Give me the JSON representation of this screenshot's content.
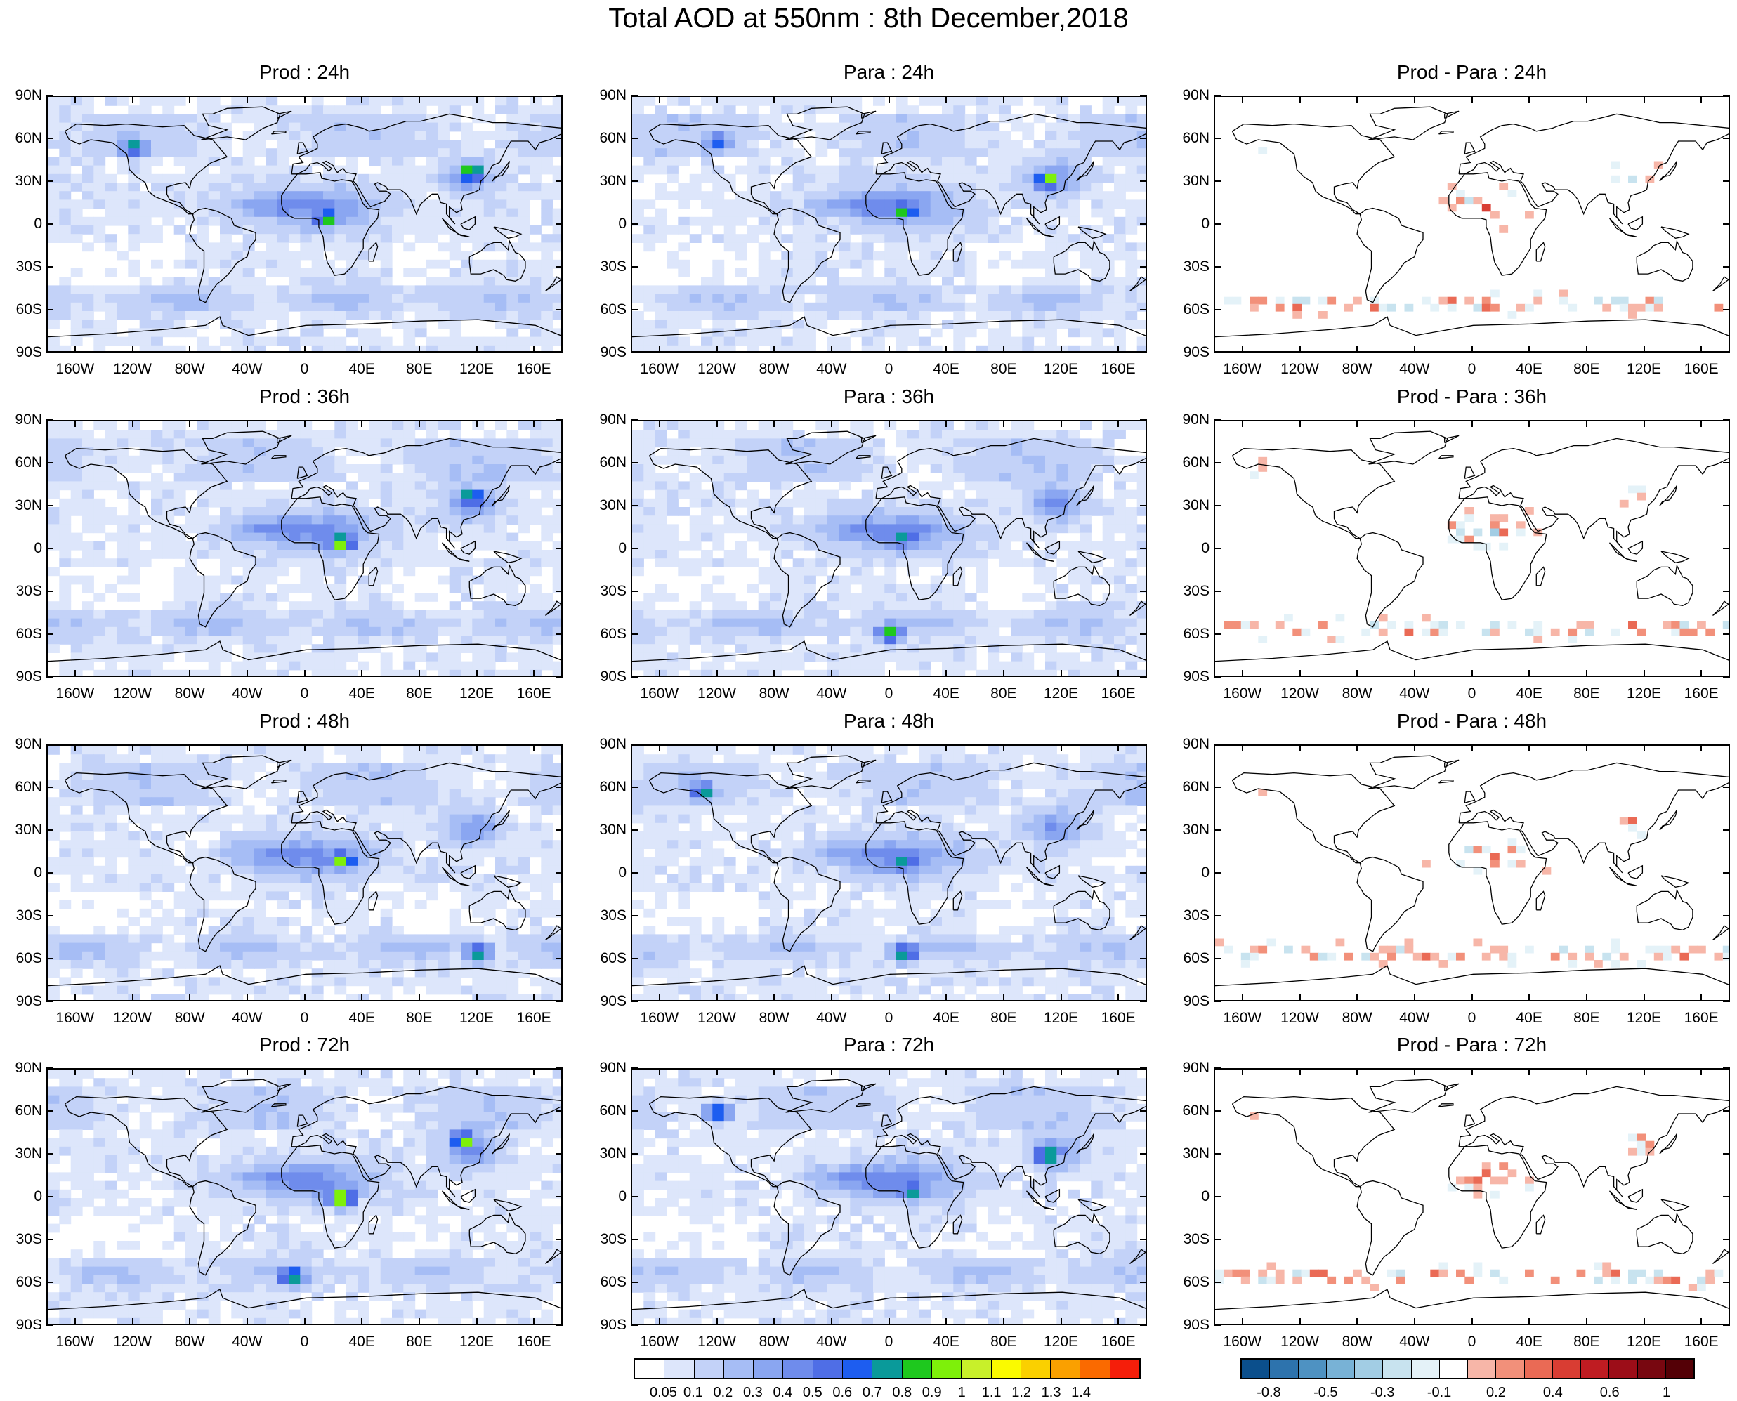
{
  "title": "Total AOD at 550nm : 8th December,2018",
  "lat_labels": [
    "90N",
    "60N",
    "30N",
    "0",
    "30S",
    "60S",
    "90S"
  ],
  "lon_labels": [
    "160W",
    "120W",
    "80W",
    "40W",
    "0",
    "40E",
    "80E",
    "120E",
    "160E"
  ],
  "panels": [
    {
      "title": "Prod : 24h",
      "kind": "aod",
      "hotspots": [
        {
          "lon": 15,
          "lat": 5,
          "v": 0.9
        },
        {
          "lon": 115,
          "lat": 37,
          "v": 1.0
        },
        {
          "lon": -120,
          "lat": 55,
          "v": 0.8
        }
      ]
    },
    {
      "title": "Para : 24h",
      "kind": "aod",
      "hotspots": [
        {
          "lon": 10,
          "lat": 10,
          "v": 0.9
        },
        {
          "lon": 110,
          "lat": 32,
          "v": 1.0
        },
        {
          "lon": -120,
          "lat": 58,
          "v": 0.7
        }
      ]
    },
    {
      "title": "Prod - Para : 24h",
      "kind": "diff",
      "seed": 3
    },
    {
      "title": "Prod : 36h",
      "kind": "aod",
      "hotspots": [
        {
          "lon": 25,
          "lat": 5,
          "v": 1.0
        },
        {
          "lon": 115,
          "lat": 37,
          "v": 0.9
        }
      ]
    },
    {
      "title": "Para : 36h",
      "kind": "aod",
      "hotspots": [
        {
          "lon": 10,
          "lat": 8,
          "v": 0.8
        },
        {
          "lon": 0,
          "lat": -58,
          "v": 0.9
        }
      ]
    },
    {
      "title": "Prod - Para : 36h",
      "kind": "diff",
      "seed": 7
    },
    {
      "title": "Prod : 48h",
      "kind": "aod",
      "hotspots": [
        {
          "lon": 25,
          "lat": 10,
          "v": 1.0
        },
        {
          "lon": 120,
          "lat": -55,
          "v": 0.8
        }
      ]
    },
    {
      "title": "Para : 48h",
      "kind": "aod",
      "hotspots": [
        {
          "lon": 10,
          "lat": 8,
          "v": 0.8
        },
        {
          "lon": -130,
          "lat": 58,
          "v": 0.8
        },
        {
          "lon": 10,
          "lat": -55,
          "v": 0.8
        }
      ]
    },
    {
      "title": "Prod - Para : 48h",
      "kind": "diff",
      "seed": 11
    },
    {
      "title": "Prod : 72h",
      "kind": "aod",
      "hotspots": [
        {
          "lon": 25,
          "lat": 0,
          "v": 1.1
        },
        {
          "lon": 110,
          "lat": 40,
          "v": 1.0
        },
        {
          "lon": -10,
          "lat": -55,
          "v": 0.9
        }
      ]
    },
    {
      "title": "Para : 72h",
      "kind": "aod",
      "hotspots": [
        {
          "lon": 15,
          "lat": 5,
          "v": 0.8
        },
        {
          "lon": -120,
          "lat": 60,
          "v": 0.8
        },
        {
          "lon": 110,
          "lat": 30,
          "v": 0.9
        }
      ]
    },
    {
      "title": "Prod - Para : 72h",
      "kind": "diff",
      "seed": 19
    }
  ],
  "colorbar_aod": {
    "labels": [
      "0.05",
      "0.1",
      "0.2",
      "0.3",
      "0.4",
      "0.5",
      "0.6",
      "0.7",
      "0.8",
      "0.9",
      "1",
      "1.1",
      "1.2",
      "1.3",
      "1.4"
    ],
    "colors": [
      "#ffffff",
      "#dde6fb",
      "#c3d2f8",
      "#a6bdf5",
      "#8aa6f1",
      "#6f8cec",
      "#4f6ee6",
      "#1d5df0",
      "#0a9a9a",
      "#1ec81e",
      "#7ef00a",
      "#c8f02a",
      "#fafa00",
      "#fad000",
      "#faa000",
      "#fa6a00",
      "#f51e0a"
    ]
  },
  "colorbar_diff": {
    "labels": [
      "-0.8",
      "-0.5",
      "-0.3",
      "-0.1",
      "0.2",
      "0.4",
      "0.6",
      "1"
    ],
    "colors": [
      "#0b4f8c",
      "#2d73ad",
      "#4e92c2",
      "#78b2d6",
      "#a2cde4",
      "#c8e3ef",
      "#e4f2f8",
      "#ffffff",
      "#f7b6a8",
      "#f2907a",
      "#ea6a55",
      "#d93d33",
      "#bf1c22",
      "#9c0d18",
      "#780710",
      "#540006"
    ]
  }
}
